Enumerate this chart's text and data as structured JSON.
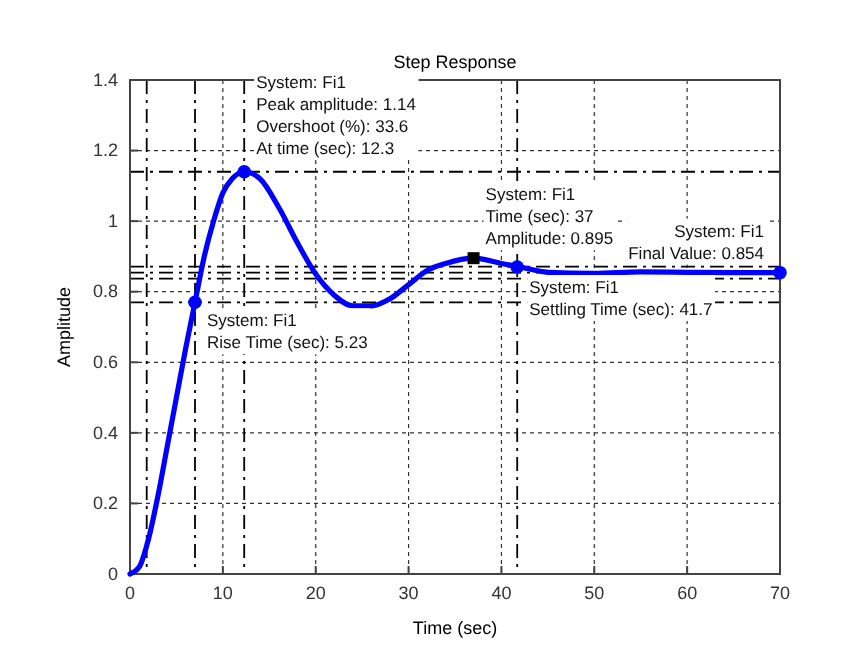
{
  "chart_data": {
    "type": "line",
    "title": "Step Response",
    "xlabel": "Time (sec)",
    "ylabel": "Amplitude",
    "xlim": [
      0,
      70
    ],
    "ylim": [
      0,
      1.4
    ],
    "xticks": [
      0,
      10,
      20,
      30,
      40,
      50,
      60,
      70
    ],
    "yticks": [
      0,
      0.2,
      0.4,
      0.6,
      0.8,
      1,
      1.2,
      1.4
    ],
    "grid": true,
    "series": [
      {
        "color": "#0000ff",
        "x": [
          0,
          1,
          2,
          3,
          4,
          5,
          6,
          7,
          8,
          9,
          10,
          11,
          12.3,
          14,
          16,
          18,
          20,
          22,
          24,
          26,
          28,
          30,
          32,
          34,
          37,
          40,
          42,
          45,
          50,
          55,
          60,
          65,
          70
        ],
        "values": [
          0,
          0.02,
          0.1,
          0.22,
          0.36,
          0.5,
          0.64,
          0.77,
          0.9,
          1.0,
          1.08,
          1.12,
          1.14,
          1.12,
          1.04,
          0.94,
          0.85,
          0.79,
          0.76,
          0.76,
          0.78,
          0.82,
          0.86,
          0.88,
          0.895,
          0.88,
          0.87,
          0.855,
          0.852,
          0.856,
          0.855,
          0.854,
          0.854
        ]
      },
      {
        "type": "scatter",
        "marker": "circle",
        "color": "#0000ff",
        "x": [
          7,
          12.3,
          41.7,
          70
        ],
        "values": [
          0.77,
          1.14,
          0.87,
          0.854
        ]
      },
      {
        "type": "scatter",
        "marker": "square",
        "color": "#000000",
        "x": [
          37
        ],
        "values": [
          0.895
        ]
      }
    ],
    "ref_lines": [
      {
        "axis": "x",
        "value": 1.8,
        "line_style": "dashed"
      },
      {
        "axis": "x",
        "value": 7,
        "line_style": "dashed"
      },
      {
        "axis": "x",
        "value": 12.3,
        "line_style": "dashed"
      },
      {
        "axis": "x",
        "value": 41.7,
        "line_style": "dashed"
      },
      {
        "axis": "y",
        "value": 0.77,
        "line_style": "dashed"
      },
      {
        "axis": "y",
        "value": 1.14,
        "line_style": "dashed"
      },
      {
        "axis": "y",
        "value": 0.871,
        "line_style": "dashed"
      },
      {
        "axis": "y",
        "value": 0.837,
        "line_style": "dashed"
      },
      {
        "axis": "y",
        "value": 0.854,
        "line_style": "dashed"
      }
    ],
    "annotations": [
      {
        "text": "System: Fi1\nPeak amplitude: 1.14\nOvershoot (%): 33.6\nAt time (sec): 12.3",
        "x": 12.3,
        "y": 1.14
      },
      {
        "text": "System: Fi1\nRise Time (sec): 5.23",
        "x": 7,
        "y": 0.77
      },
      {
        "text": "System: Fi1\nTime (sec): 37\nAmplitude: 0.895",
        "x": 37,
        "y": 0.895
      },
      {
        "text": "System: Fi1\nSettling Time (sec): 41.7",
        "x": 41.7,
        "y": 0.87
      },
      {
        "text": "System: Fi1\nFinal Value: 0.854",
        "x": 70,
        "y": 0.854
      }
    ]
  }
}
